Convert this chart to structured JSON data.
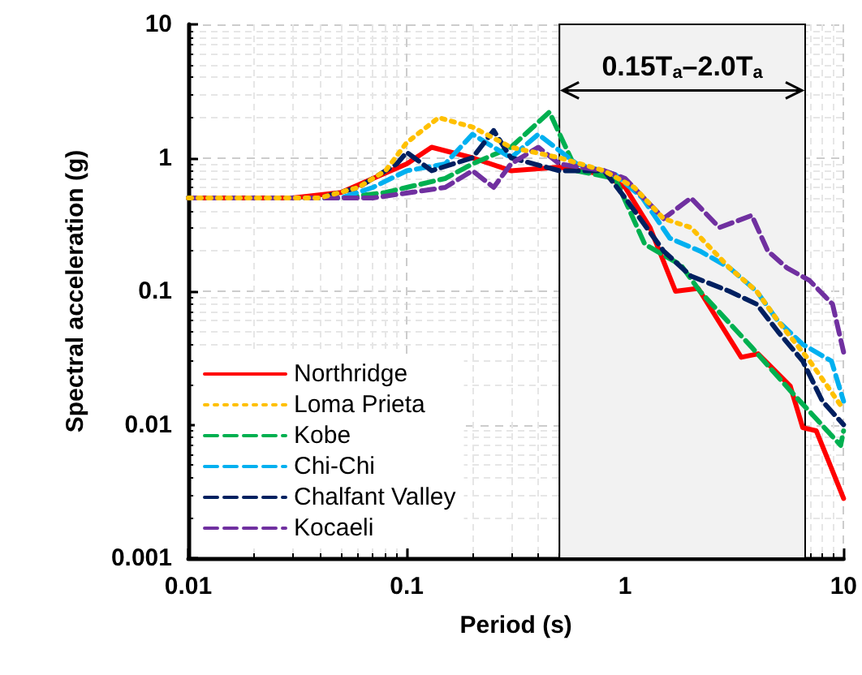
{
  "chart_data": {
    "type": "line",
    "xlabel": "Period (s)",
    "ylabel": "Spectral acceleration (g)",
    "log": "xy",
    "xlim": [
      0.01,
      10
    ],
    "ylim": [
      0.001,
      10
    ],
    "xticks": [
      0.01,
      0.1,
      1,
      10
    ],
    "yticks": [
      0.001,
      0.01,
      0.1,
      1,
      10
    ],
    "grid": true,
    "legend": "bottom left",
    "marker": "none",
    "bands": [
      {
        "axis": "x",
        "from": 0.5,
        "to": 6.67,
        "color": "#f2f2f2"
      }
    ],
    "annotations": [
      {
        "text": "0.15T$_{a}$–2.0T$_{a}$",
        "x": 0.5,
        "y": 3.2
      }
    ],
    "series": [
      {
        "name": "Northridge",
        "color": "#ff0000",
        "line_style": "solid",
        "x": [
          0.01,
          0.03,
          0.05,
          0.07,
          0.1,
          0.13,
          0.2,
          0.3,
          0.5,
          0.8,
          1,
          1.3,
          1.7,
          2.16,
          3.4,
          4.06,
          5.7,
          6.5,
          7.5,
          10
        ],
        "values": [
          0.5,
          0.5,
          0.55,
          0.7,
          0.9,
          1.2,
          1.0,
          0.8,
          0.85,
          0.75,
          0.6,
          0.3,
          0.1,
          0.105,
          0.032,
          0.034,
          0.0195,
          0.0095,
          0.009,
          0.0028
        ]
      },
      {
        "name": "Loma Prieta",
        "color": "#ffc000",
        "line_style": "dotted",
        "x": [
          0.01,
          0.04,
          0.06,
          0.08,
          0.1,
          0.14,
          0.2,
          0.3,
          0.5,
          0.8,
          1.1,
          1.5,
          2,
          3,
          4,
          5,
          7,
          10
        ],
        "values": [
          0.5,
          0.5,
          0.6,
          0.8,
          1.3,
          2.0,
          1.7,
          1.2,
          1.0,
          0.8,
          0.6,
          0.35,
          0.3,
          0.15,
          0.1,
          0.06,
          0.03,
          0.013
        ]
      },
      {
        "name": "Kobe",
        "color": "#00b050",
        "line_style": "dashed",
        "x": [
          0.01,
          0.05,
          0.08,
          0.1,
          0.15,
          0.2,
          0.3,
          0.45,
          0.6,
          0.9,
          1.23,
          1.8,
          2.2,
          3.8,
          5.7,
          9.7,
          10
        ],
        "values": [
          0.5,
          0.5,
          0.55,
          0.6,
          0.7,
          0.9,
          1.2,
          2.2,
          0.8,
          0.7,
          0.225,
          0.157,
          0.1,
          0.038,
          0.018,
          0.007,
          0.009
        ]
      },
      {
        "name": "Chi-Chi",
        "color": "#00b0f0",
        "line_style": "dashed",
        "x": [
          0.01,
          0.05,
          0.07,
          0.1,
          0.15,
          0.2,
          0.3,
          0.4,
          0.6,
          0.9,
          1.2,
          1.6,
          2.2,
          3,
          4,
          5,
          6.5,
          8.8,
          10
        ],
        "values": [
          0.5,
          0.5,
          0.6,
          0.8,
          0.9,
          1.5,
          1.0,
          1.5,
          0.9,
          0.75,
          0.5,
          0.25,
          0.2,
          0.15,
          0.1,
          0.06,
          0.04,
          0.03,
          0.015
        ]
      },
      {
        "name": "Chalfant Valley",
        "color": "#002060",
        "line_style": "dashed",
        "x": [
          0.01,
          0.04,
          0.06,
          0.09,
          0.1,
          0.13,
          0.2,
          0.25,
          0.3,
          0.5,
          0.8,
          1,
          1.5,
          2,
          3,
          4,
          5,
          6.5,
          8,
          10
        ],
        "values": [
          0.5,
          0.5,
          0.6,
          0.9,
          1.1,
          0.8,
          1.0,
          1.6,
          1.0,
          0.8,
          0.8,
          0.5,
          0.2,
          0.13,
          0.1,
          0.08,
          0.05,
          0.03,
          0.015,
          0.01
        ]
      },
      {
        "name": "Kocaeli",
        "color": "#7030a0",
        "line_style": "dashed",
        "x": [
          0.01,
          0.07,
          0.15,
          0.2,
          0.25,
          0.3,
          0.4,
          0.5,
          0.8,
          1,
          1.5,
          2,
          2.7,
          3.8,
          4.5,
          5.5,
          7,
          8.9,
          10
        ],
        "values": [
          0.5,
          0.5,
          0.6,
          0.8,
          0.6,
          0.9,
          1.2,
          0.9,
          0.8,
          0.7,
          0.35,
          0.5,
          0.3,
          0.37,
          0.2,
          0.15,
          0.12,
          0.08,
          0.035
        ]
      }
    ]
  }
}
